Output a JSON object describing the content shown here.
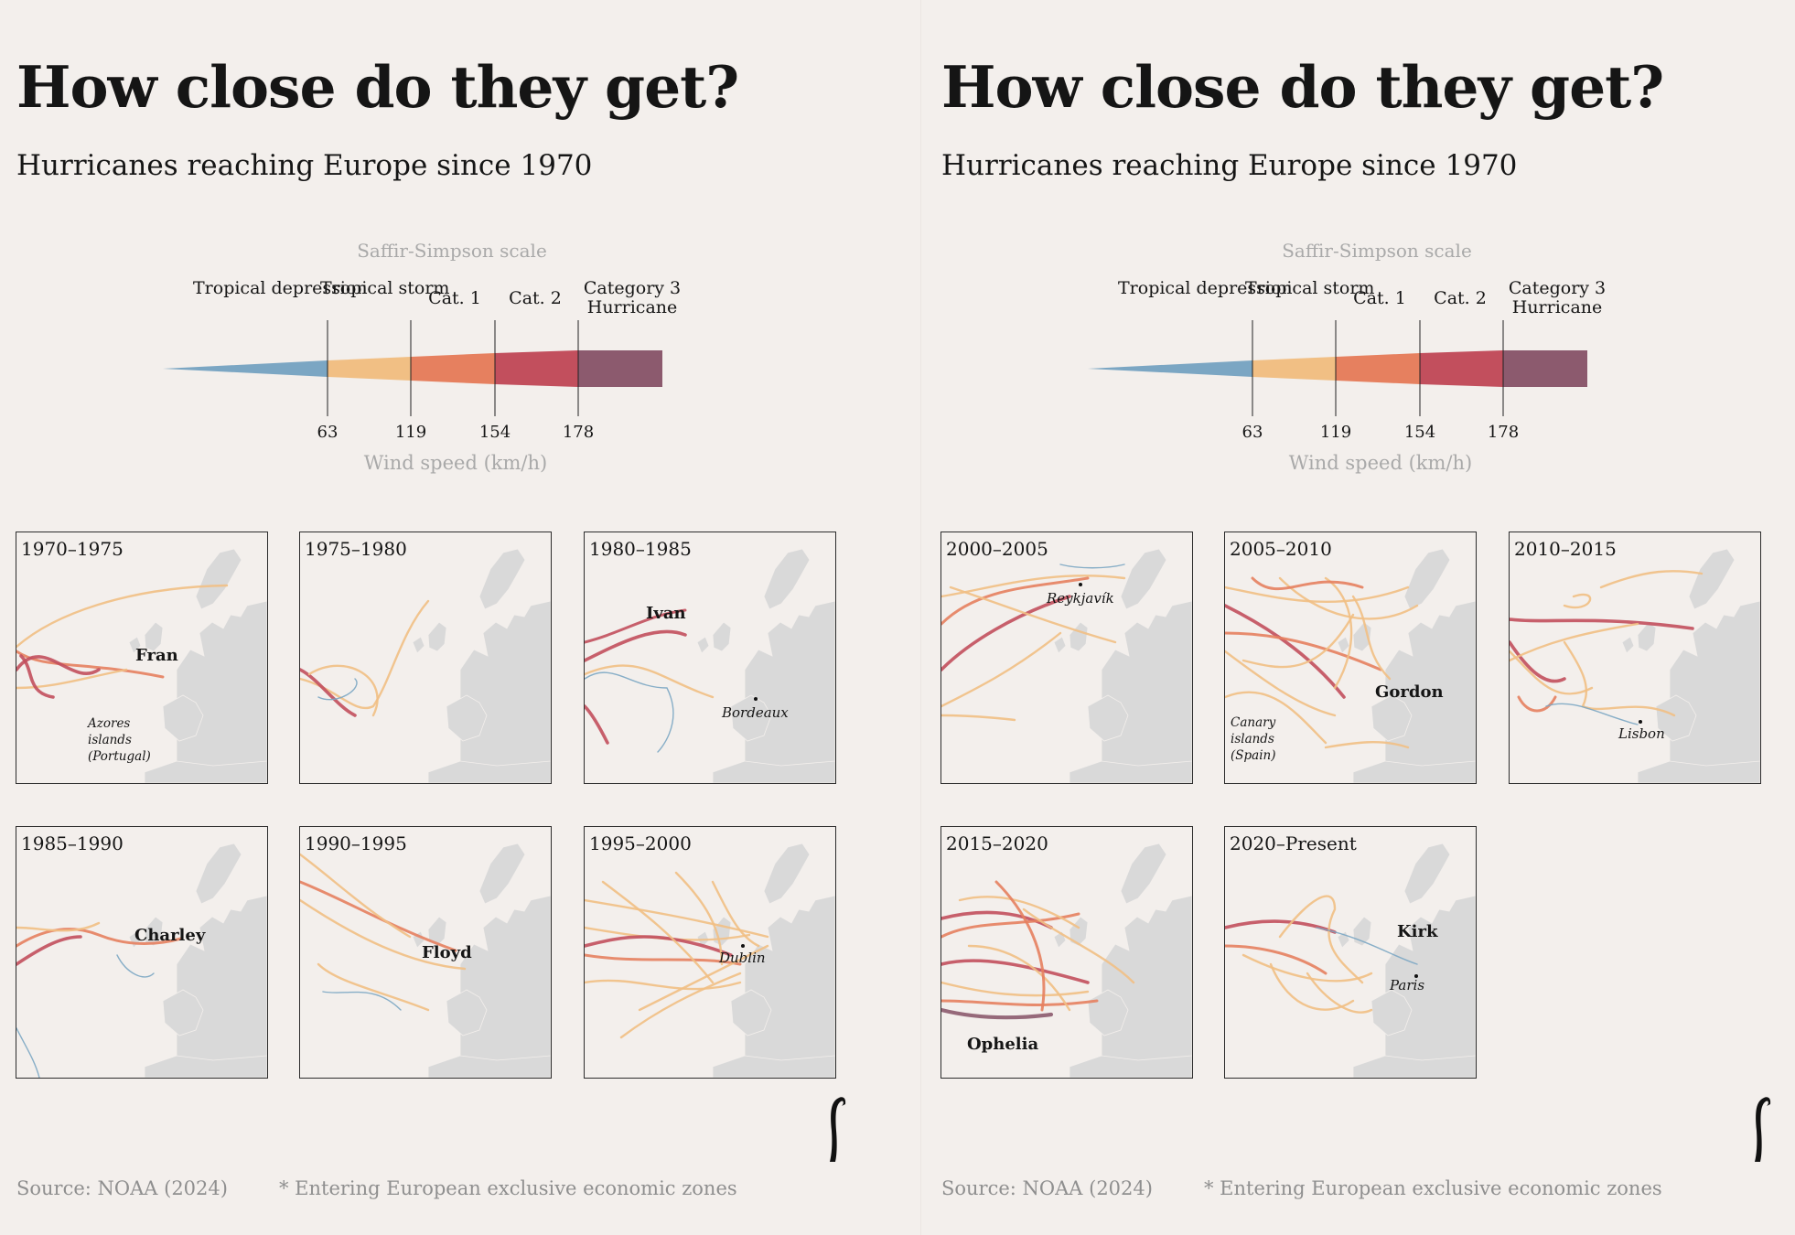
{
  "colors": {
    "background": "#f3efec",
    "tropical_depression": "#7ba6c3",
    "tropical_storm": "#f1bf84",
    "cat1": "#e6805f",
    "cat2": "#c24f5d",
    "cat3": "#8c5a6e",
    "land": "#d9d9d9"
  },
  "source_text": "Source: NOAA (2024)",
  "note_text": "* Entering European exclusive economic zones",
  "panels": [
    {
      "title": "How close do they get?",
      "subtitle": "Hurricanes reaching Europe since 1970",
      "maps": [
        {
          "period": "1970–1975",
          "labels": [
            {
              "text": "Fran",
              "kind": "bold"
            },
            {
              "text": "Azores islands (Portugal)",
              "kind": "small"
            }
          ]
        },
        {
          "period": "1975–1980",
          "labels": []
        },
        {
          "period": "1980–1985",
          "labels": [
            {
              "text": "Ivan",
              "kind": "bold"
            },
            {
              "text": "Bordeaux",
              "kind": "city"
            }
          ]
        },
        {
          "period": "1985–1990",
          "labels": [
            {
              "text": "Charley",
              "kind": "bold"
            }
          ]
        },
        {
          "period": "1990–1995",
          "labels": [
            {
              "text": "Floyd",
              "kind": "bold"
            }
          ]
        },
        {
          "period": "1995–2000",
          "labels": [
            {
              "text": "Dublin",
              "kind": "city"
            }
          ]
        }
      ]
    },
    {
      "title": "How close do they get?",
      "subtitle": "Hurricanes reaching Europe since 1970",
      "maps": [
        {
          "period": "2000–2005",
          "labels": [
            {
              "text": "Reykjavík",
              "kind": "city"
            }
          ]
        },
        {
          "period": "2005–2010",
          "labels": [
            {
              "text": "Gordon",
              "kind": "bold"
            },
            {
              "text": "Canary islands (Spain)",
              "kind": "small"
            }
          ]
        },
        {
          "period": "2010–2015",
          "labels": [
            {
              "text": "Lisbon",
              "kind": "city"
            }
          ]
        },
        {
          "period": "2015–2020",
          "labels": [
            {
              "text": "Ophelia",
              "kind": "bold"
            }
          ]
        },
        {
          "period": "2020–Present",
          "labels": [
            {
              "text": "Kirk",
              "kind": "bold"
            },
            {
              "text": "Paris",
              "kind": "city"
            }
          ]
        }
      ]
    }
  ],
  "chart_data": {
    "type": "other",
    "title": "How close do they get?",
    "subtitle": "Hurricanes reaching Europe since 1970",
    "legend": {
      "title": "Saffir-Simpson scale",
      "axis_label": "Wind speed (km/h)",
      "categories": [
        "Tropical depression",
        "Tropical storm",
        "Cat. 1",
        "Cat. 2",
        "Category 3 Hurricane"
      ],
      "thresholds": [
        63,
        119,
        154,
        178
      ]
    },
    "periods": [
      "1970–1975",
      "1975–1980",
      "1980–1985",
      "1985–1990",
      "1990–1995",
      "1995–2000",
      "2000–2005",
      "2005–2010",
      "2010–2015",
      "2015–2020",
      "2020–Present"
    ],
    "named_storms": [
      "Fran",
      "Ivan",
      "Charley",
      "Floyd",
      "Gordon",
      "Ophelia",
      "Kirk"
    ],
    "places": [
      "Azores islands (Portugal)",
      "Bordeaux",
      "Dublin",
      "Reykjavík",
      "Canary islands (Spain)",
      "Lisbon",
      "Paris"
    ]
  }
}
